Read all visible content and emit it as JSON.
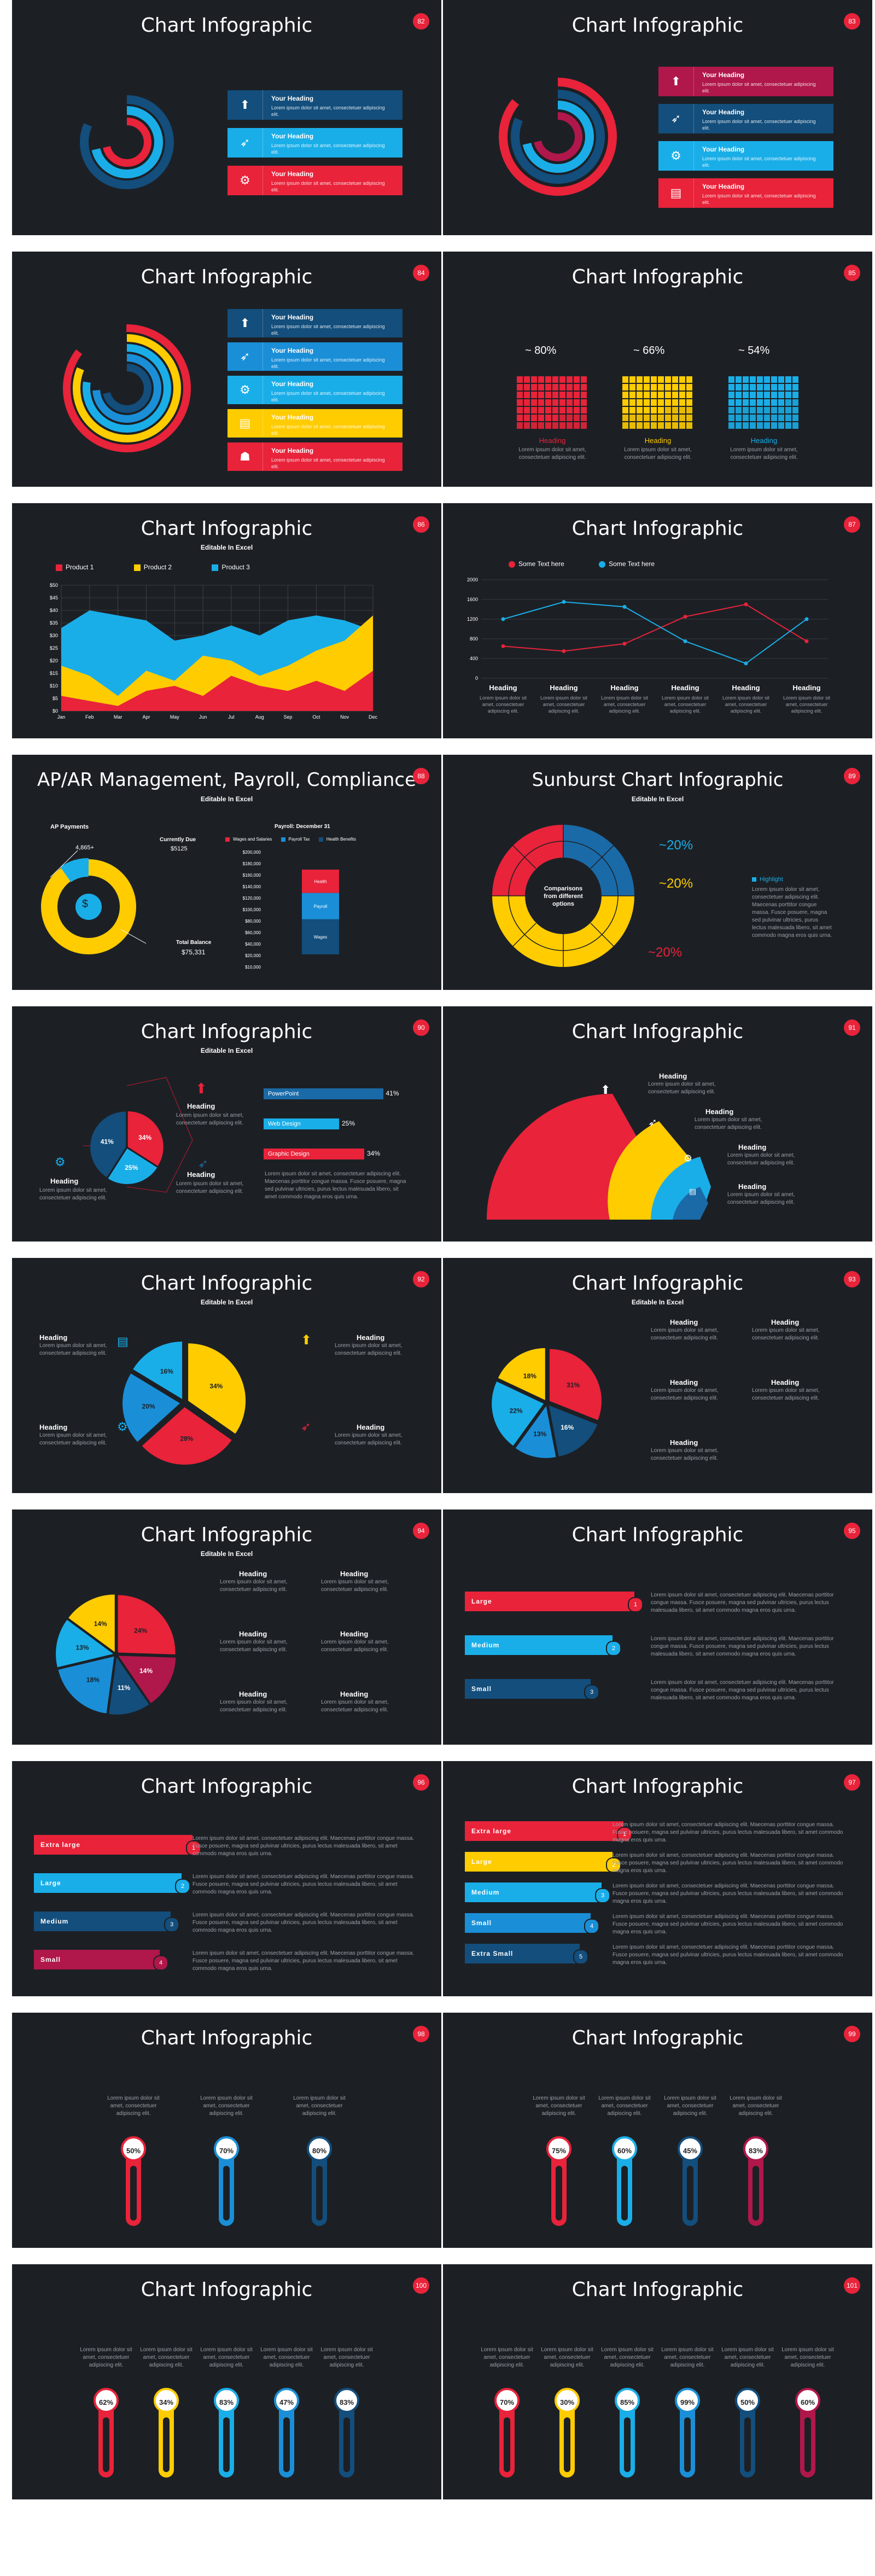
{
  "slides": [
    {
      "title": "Chart Infographic",
      "num": "82"
    },
    {
      "title": "Chart Infographic",
      "num": "83"
    },
    {
      "title": "Chart Infographic",
      "num": "84"
    },
    {
      "title": "Chart Infographic",
      "num": "85"
    },
    {
      "title": "Chart Infographic",
      "num": "86",
      "subtitle": "Editable In Excel"
    },
    {
      "title": "Chart Infographic",
      "num": "87"
    },
    {
      "title": "AP/AR Management, Payroll, Compliance",
      "num": "88",
      "subtitle": "Editable In Excel"
    },
    {
      "title": "Sunburst Chart Infographic",
      "num": "89",
      "subtitle": "Editable In Excel"
    },
    {
      "title": "Chart Infographic",
      "num": "90",
      "subtitle": "Editable In Excel"
    },
    {
      "title": "Chart Infographic",
      "num": "91"
    },
    {
      "title": "Chart Infographic",
      "num": "92",
      "subtitle": "Editable In Excel"
    },
    {
      "title": "Chart Infographic",
      "num": "93",
      "subtitle": "Editable In Excel"
    },
    {
      "title": "Chart Infographic",
      "num": "94",
      "subtitle": "Editable In Excel"
    },
    {
      "title": "Chart Infographic",
      "num": "95"
    },
    {
      "title": "Chart Infographic",
      "num": "96"
    },
    {
      "title": "Chart Infographic",
      "num": "97"
    },
    {
      "title": "Chart Infographic",
      "num": "98"
    },
    {
      "title": "Chart Infographic",
      "num": "99"
    },
    {
      "title": "Chart Infographic",
      "num": "100"
    },
    {
      "title": "Chart Infographic",
      "num": "101"
    }
  ],
  "text": {
    "heading": "Your Heading",
    "heading_short": "Heading",
    "lorem_short": "Lorem ipsum dolor sit amet, consectetuer adipiscing elit.",
    "lorem_short2": "Lorem ipsum dolor sit amet, consectetuer adipiscing elit.",
    "lorem_long": "Lorem ipsum dolor sit amet, consectetuer adipiscing elit. Maecenas porttitor congue massa. Fusce posuere, magna sed pulvinar ultricies, purus lectus malesuada libero, sit amet commodo magna eros quis urna.",
    "lorem_col": "Lorem ipsum dolor sit amet, consectetuer adipiscing elit."
  },
  "s85": {
    "pcts": [
      "~ 80%",
      "~ 66%",
      "~ 54%"
    ],
    "labels": [
      "Heading",
      "Heading",
      "Heading"
    ]
  },
  "s86": {
    "legend": [
      "Product 1",
      "Product 2",
      "Product 3"
    ],
    "chart_data": {
      "type": "area",
      "categories": [
        "Jan",
        "Feb",
        "Mar",
        "Apr",
        "May",
        "Jun",
        "Jul",
        "Aug",
        "Sep",
        "Oct",
        "Nov",
        "Dec"
      ],
      "ylim": [
        0,
        50
      ],
      "yticks": [
        "$0",
        "$5",
        "$10",
        "$15",
        "$20",
        "$25",
        "$30",
        "$35",
        "$40",
        "$45",
        "$50"
      ],
      "series": [
        {
          "name": "Product 3",
          "values": [
            33,
            40,
            38,
            36,
            28,
            30,
            34,
            30,
            36,
            38,
            36,
            32
          ],
          "color": "#1aaee8"
        },
        {
          "name": "Product 2",
          "values": [
            18,
            14,
            6,
            16,
            12,
            22,
            20,
            14,
            18,
            24,
            28,
            38
          ],
          "color": "#ffcc00"
        },
        {
          "name": "Product 1",
          "values": [
            6,
            4,
            2,
            8,
            10,
            6,
            14,
            10,
            8,
            12,
            8,
            16
          ],
          "color": "#e8233a"
        }
      ]
    }
  },
  "s87": {
    "legend": [
      "Some Text here",
      "Some Text here"
    ],
    "chart_data": {
      "type": "line",
      "categories": [
        "Heading",
        "Heading",
        "Heading",
        "Heading",
        "Heading",
        "Heading"
      ],
      "ylim": [
        0,
        2000
      ],
      "yticks": [
        "0",
        "400",
        "800",
        "1200",
        "1600",
        "2000"
      ],
      "series": [
        {
          "name": "Some Text here",
          "values": [
            650,
            550,
            700,
            1250,
            1500,
            750
          ],
          "color": "#e8233a"
        },
        {
          "name": "Some Text here",
          "values": [
            1200,
            1550,
            1450,
            750,
            300,
            1200
          ],
          "color": "#1aaee8"
        }
      ]
    }
  },
  "s88": {
    "ap_title": "AP Payments",
    "ap_pct": "4,865+",
    "cur_label": "Currently Due",
    "cur_val": "$5125",
    "total_label": "Total Balance",
    "total_val": "$75,331",
    "payroll_title": "Payroll: December 31",
    "legend": [
      "Wages and Salaries",
      "Payroll Tax",
      "Health Benefits"
    ],
    "yticks": [
      "$200,000",
      "$180,000",
      "$160,000",
      "$140,000",
      "$120,000",
      "$100,000",
      "$80,000",
      "$60,000",
      "$40,000",
      "$20,000",
      "$10,000"
    ],
    "stack": [
      {
        "label": "Health",
        "value": 40000,
        "color": "#e8233a"
      },
      {
        "label": "Payroll",
        "value": 45000,
        "color": "#1a8fd8"
      },
      {
        "label": "Wages",
        "value": 60000,
        "color": "#134e7c"
      }
    ]
  },
  "s89": {
    "center": "Comparisons from different options",
    "pcts": [
      "~20%",
      "~20%",
      "~20%"
    ],
    "legend": "Highlight"
  },
  "s90": {
    "bars": [
      {
        "label": "PowerPoint",
        "value": "41%",
        "color": "#1a6aa8"
      },
      {
        "label": "Web Design",
        "value": "25%",
        "color": "#1aaee8"
      },
      {
        "label": "Graphic Design",
        "value": "34%",
        "color": "#e8233a"
      }
    ],
    "chart_data": {
      "type": "pie",
      "values": [
        34,
        25,
        41
      ],
      "labels": [
        "34%",
        "25%",
        "41%"
      ]
    }
  },
  "s92": {
    "chart_data": {
      "type": "pie",
      "values": [
        34,
        28,
        20,
        16
      ],
      "labels": [
        "34%",
        "28%",
        "20%",
        "16%"
      ]
    }
  },
  "s93": {
    "chart_data": {
      "type": "pie",
      "values": [
        31,
        16,
        13,
        22,
        18
      ],
      "labels": [
        "31%",
        "16%",
        "13%",
        "22%",
        "18%"
      ]
    }
  },
  "s94": {
    "chart_data": {
      "type": "pie",
      "values": [
        24,
        14,
        11,
        18,
        13,
        14
      ],
      "labels": [
        "24%",
        "14%",
        "11%",
        "18%",
        "13%",
        "14%"
      ]
    }
  },
  "s95": {
    "items": [
      "Large",
      "Medium",
      "Small"
    ]
  },
  "s96": {
    "items": [
      "Extra large",
      "Large",
      "Medium",
      "Small"
    ]
  },
  "s97": {
    "items": [
      "Extra large",
      "Large",
      "Medium",
      "Small",
      "Extra Small"
    ]
  },
  "s98": {
    "values": [
      "50%",
      "70%",
      "80%"
    ]
  },
  "s99": {
    "values": [
      "75%",
      "60%",
      "45%",
      "83%"
    ]
  },
  "s100": {
    "values": [
      "62%",
      "34%",
      "83%",
      "47%",
      "83%"
    ]
  },
  "s101": {
    "values": [
      "70%",
      "30%",
      "85%",
      "99%",
      "50%",
      "60%"
    ]
  },
  "colors": {
    "red": "#e8233a",
    "yellow": "#ffcc00",
    "cyan": "#1aaee8",
    "blue": "#1a8fd8",
    "navy": "#134e7c",
    "crimson": "#b0174a",
    "bg": "#1c2025"
  }
}
